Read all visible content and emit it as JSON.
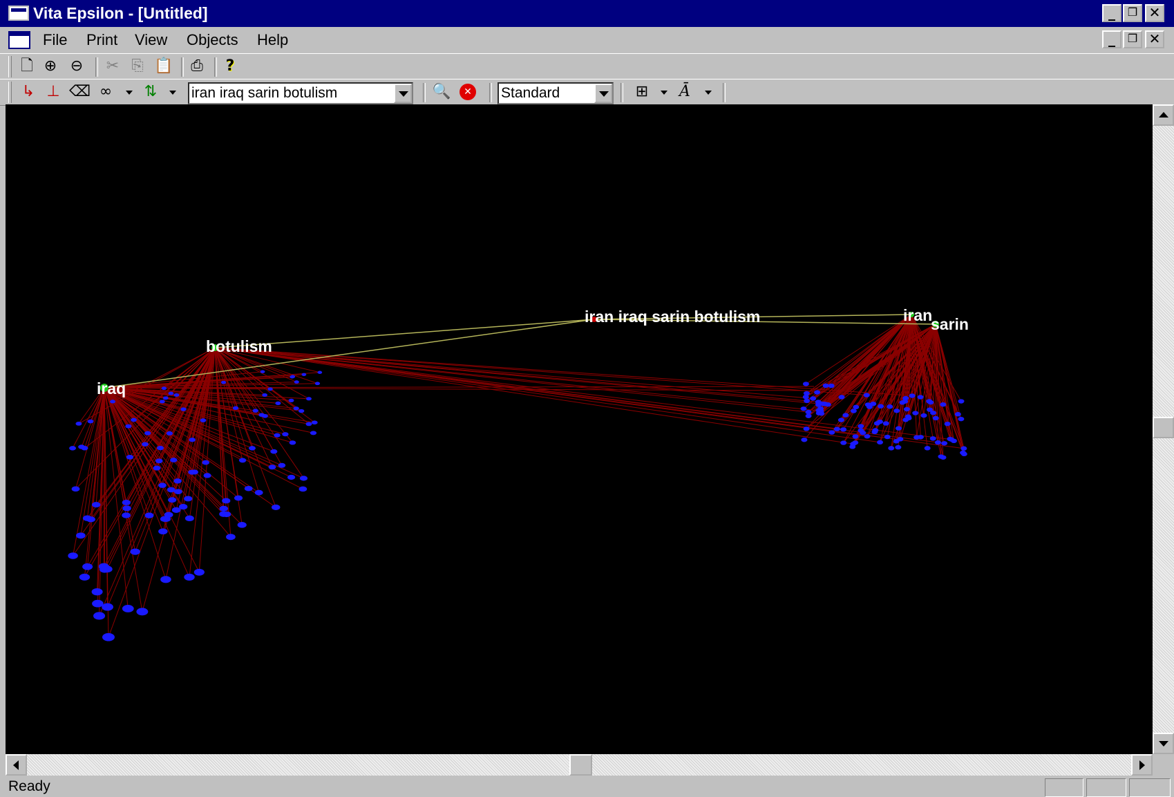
{
  "window": {
    "title": "Vita Epsilon - [Untitled]"
  },
  "menu": {
    "items": [
      "File",
      "Print",
      "View",
      "Objects",
      "Help"
    ]
  },
  "toolbar2": {
    "query": "iran iraq sarin botulism",
    "mode": "Standard"
  },
  "graph": {
    "query_node": "iran iraq sarin botulism",
    "terms": [
      "botulism",
      "iraq",
      "iran",
      "sarin"
    ],
    "colors": {
      "background": "#000000",
      "term_node": "#1fcc1f",
      "query_node": "#cc0000",
      "doc_node": "#1a1aff",
      "doc_edge": "#8b0000",
      "query_edge": "#b5b55a"
    }
  },
  "status": {
    "text": "Ready"
  }
}
